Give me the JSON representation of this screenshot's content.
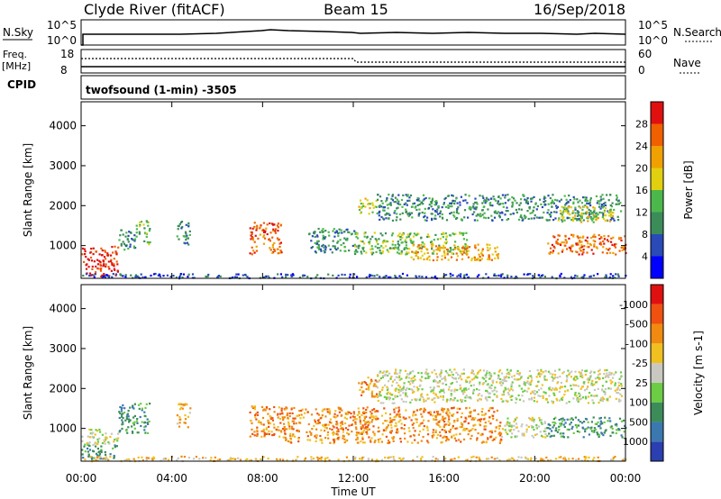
{
  "header": {
    "station": "Clyde River (fitACF)",
    "beam": "Beam 15",
    "date": "16/Sep/2018"
  },
  "top_panels": {
    "nsky_label": "N.Sky",
    "nsky_ticks": [
      "10^5",
      "10^0"
    ],
    "nsearch_label": "N.Search",
    "nsearch_ticks": [
      "10^5",
      "10^0"
    ],
    "freq_label": "Freq.",
    "freq_unit": "[MHz]",
    "freq_ticks": [
      "18",
      "8"
    ],
    "nave_label": "Nave",
    "nave_ticks": [
      "60",
      "0"
    ],
    "cpid_label": "CPID",
    "cpid_text": "twofsound (1-min) -3505"
  },
  "chart_data": [
    {
      "type": "heatmap",
      "name": "power",
      "ylabel": "Slant Range [km]",
      "yticks": [
        1000,
        2000,
        3000,
        4000
      ],
      "ylim": [
        180,
        4600
      ],
      "xlim_hours": [
        0,
        24
      ],
      "colorbar_label": "Power [dB]",
      "colorbar_ticks": [
        "4",
        "8",
        "12",
        "16",
        "20",
        "24",
        "28"
      ],
      "colors": [
        "#0000ff",
        "#2a4ab8",
        "#3c8c5a",
        "#4cb84c",
        "#e0d010",
        "#f0a000",
        "#f06000",
        "#e01010"
      ],
      "echo_regions": [
        {
          "t0": 0.0,
          "t1": 1.6,
          "r0": 250,
          "r1": 1000,
          "level": 7
        },
        {
          "t0": 1.6,
          "t1": 2.4,
          "r0": 900,
          "r1": 1450,
          "level": 2
        },
        {
          "t0": 2.4,
          "t1": 3.0,
          "r0": 1050,
          "r1": 1650,
          "level": 3
        },
        {
          "t0": 4.2,
          "t1": 4.8,
          "r0": 1050,
          "r1": 1650,
          "level": 2
        },
        {
          "t0": 7.4,
          "t1": 8.8,
          "r0": 800,
          "r1": 1600,
          "level": 6
        },
        {
          "t0": 10.0,
          "t1": 12.2,
          "r0": 850,
          "r1": 1450,
          "level": 2
        },
        {
          "t0": 12.0,
          "t1": 17.0,
          "r0": 800,
          "r1": 1350,
          "level": 3
        },
        {
          "t0": 14.5,
          "t1": 18.5,
          "r0": 650,
          "r1": 1050,
          "level": 5
        },
        {
          "t0": 12.2,
          "t1": 13.0,
          "r0": 1800,
          "r1": 2200,
          "level": 4
        },
        {
          "t0": 13.0,
          "t1": 23.8,
          "r0": 1650,
          "r1": 2300,
          "level": 2
        },
        {
          "t0": 21.0,
          "t1": 23.5,
          "r0": 1600,
          "r1": 2000,
          "level": 4
        },
        {
          "t0": 20.5,
          "t1": 24.0,
          "r0": 800,
          "r1": 1300,
          "level": 6
        },
        {
          "t0": 0.0,
          "t1": 24.0,
          "r0": 200,
          "r1": 320,
          "level": 1
        }
      ]
    },
    {
      "type": "heatmap",
      "name": "velocity",
      "ylabel": "Slant Range [km]",
      "xlabel": "Time UT",
      "yticks": [
        1000,
        2000,
        3000,
        4000
      ],
      "ylim": [
        180,
        4600
      ],
      "xlim_hours": [
        0,
        24
      ],
      "xticks": [
        "00:00",
        "04:00",
        "08:00",
        "12:00",
        "16:00",
        "20:00",
        "00:00"
      ],
      "colorbar_label": "Velocity [m s-1]",
      "colorbar_ticks": [
        "1000",
        "500",
        "100",
        "25",
        "-25",
        "-100",
        "-500",
        "-1000"
      ],
      "colors": [
        "#2b3fb0",
        "#3c78b0",
        "#3c8c5a",
        "#6ccc44",
        "#c8c8c0",
        "#f0c020",
        "#f08a10",
        "#f05010",
        "#e01010"
      ],
      "echo_regions": [
        {
          "t0": 0.0,
          "t1": 1.6,
          "r0": 600,
          "r1": 1000,
          "level": 4
        },
        {
          "t0": 0.0,
          "t1": 1.6,
          "r0": 250,
          "r1": 600,
          "level": 2
        },
        {
          "t0": 1.6,
          "t1": 3.0,
          "r0": 900,
          "r1": 1650,
          "level": 2
        },
        {
          "t0": 4.2,
          "t1": 4.8,
          "r0": 1050,
          "r1": 1650,
          "level": 5
        },
        {
          "t0": 7.4,
          "t1": 8.8,
          "r0": 800,
          "r1": 1600,
          "level": 6
        },
        {
          "t0": 8.8,
          "t1": 18.5,
          "r0": 650,
          "r1": 1550,
          "level": 6
        },
        {
          "t0": 12.2,
          "t1": 13.2,
          "r0": 1800,
          "r1": 2300,
          "level": 6
        },
        {
          "t0": 13.0,
          "t1": 23.8,
          "r0": 1650,
          "r1": 2500,
          "level": 4
        },
        {
          "t0": 18.5,
          "t1": 20.5,
          "r0": 800,
          "r1": 1300,
          "level": 4
        },
        {
          "t0": 20.5,
          "t1": 24.0,
          "r0": 800,
          "r1": 1300,
          "level": 2
        },
        {
          "t0": 0.0,
          "t1": 24.0,
          "r0": 200,
          "r1": 320,
          "level": 5
        }
      ]
    }
  ]
}
